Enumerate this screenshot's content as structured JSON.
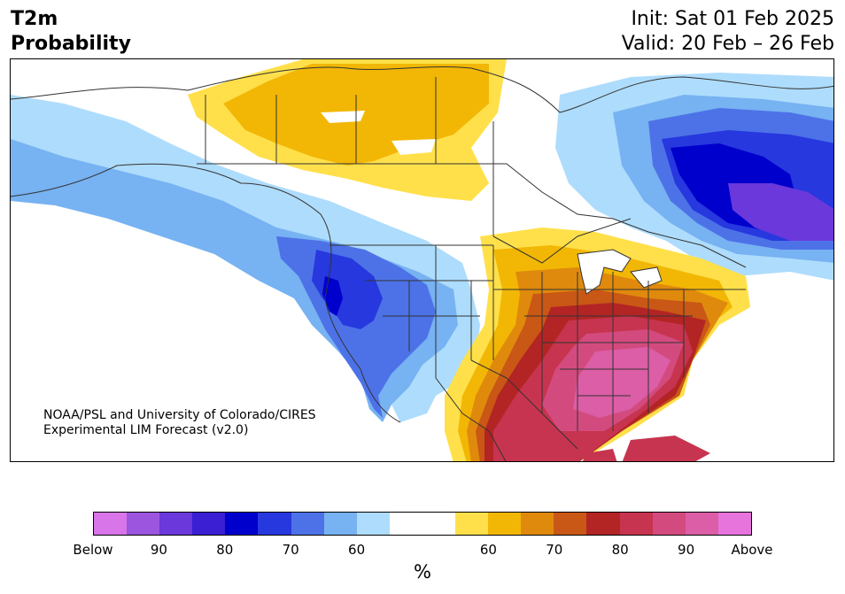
{
  "title": {
    "line1": "T2m",
    "line2": "Probability"
  },
  "dates": {
    "init": "Init: Sat 01 Feb 2025",
    "valid": "Valid: 20 Feb – 26 Feb"
  },
  "credit": {
    "line1": "NOAA/PSL and University of Colorado/CIRES",
    "line2": "Experimental LIM Forecast (v2.0)"
  },
  "colorbar": {
    "unit": "%",
    "colors": [
      "#d875e8",
      "#9b55df",
      "#6a38db",
      "#3a1fd3",
      "#0000cd",
      "#2638de",
      "#4d72e7",
      "#77b2f2",
      "#aedcfc",
      "#ffffff",
      "#ffffff",
      "#ffe04a",
      "#f2b705",
      "#df8a0d",
      "#c95715",
      "#b32424",
      "#c7344f",
      "#d34b7e",
      "#db5ea6",
      "#e674dc"
    ],
    "ticks": [
      "Below",
      "90",
      "80",
      "70",
      "60",
      "60",
      "70",
      "80",
      "90",
      "Above"
    ]
  }
}
